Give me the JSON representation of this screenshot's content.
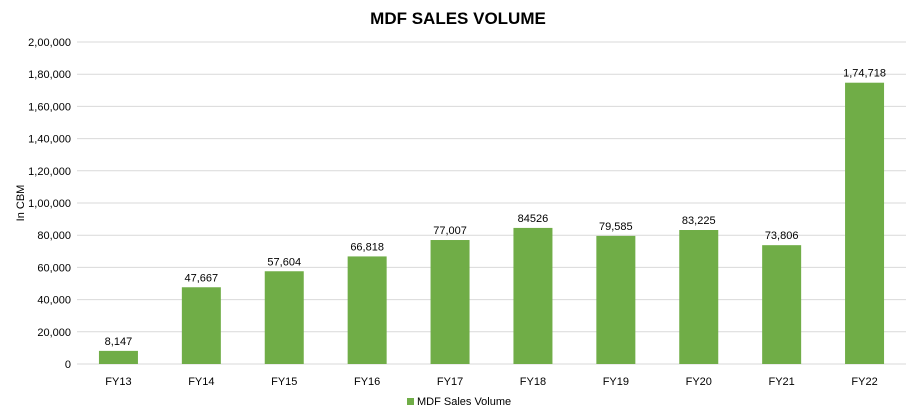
{
  "chart_data": {
    "type": "bar",
    "title": "MDF SALES VOLUME",
    "ylabel": "In CBM",
    "xlabel": "",
    "categories": [
      "FY13",
      "FY14",
      "FY15",
      "FY16",
      "FY17",
      "FY18",
      "FY19",
      "FY20",
      "FY21",
      "FY22"
    ],
    "series": [
      {
        "name": "MDF Sales Volume",
        "values": [
          8147,
          47667,
          57604,
          66818,
          77007,
          84526,
          79585,
          83225,
          73806,
          174718
        ],
        "data_labels": [
          "8,147",
          "47,667",
          "57,604",
          "66,818",
          "77,007",
          "84526",
          "79,585",
          "83,225",
          "73,806",
          "1,74,718"
        ],
        "color": "#70ad47"
      }
    ],
    "ylim": [
      0,
      200000
    ],
    "y_ticks": [
      0,
      20000,
      40000,
      60000,
      80000,
      100000,
      120000,
      140000,
      160000,
      180000,
      200000
    ],
    "y_tick_labels": [
      "0",
      "20,000",
      "40,000",
      "60,000",
      "80,000",
      "1,00,000",
      "1,20,000",
      "1,40,000",
      "1,60,000",
      "1,80,000",
      "2,00,000"
    ],
    "grid": true,
    "gridline_color": "#d9d9d9",
    "legend_position": "bottom"
  }
}
